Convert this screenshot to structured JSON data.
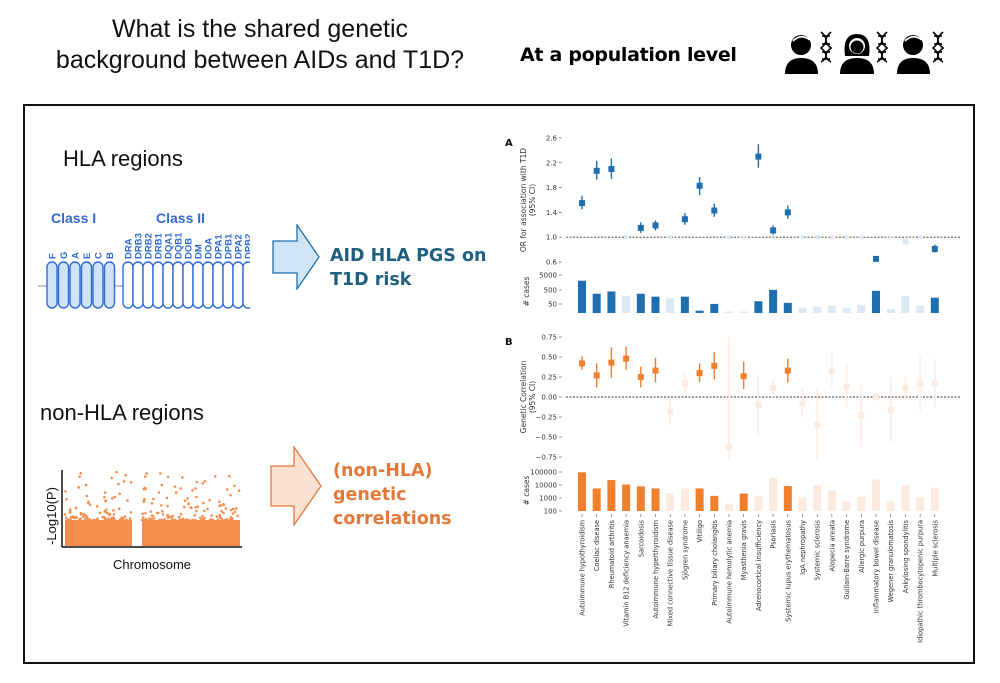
{
  "header": {
    "question_line1": "What is the shared genetic",
    "question_line2": "background between AIDs and T1D?",
    "scope_label": "At a population level",
    "people_icons": [
      "person-dna-icon",
      "person-female-dna-icon",
      "person-dna-icon"
    ]
  },
  "left": {
    "hla": {
      "title": "HLA regions",
      "class1_label": "Class I",
      "class2_label": "Class II",
      "class1_genes": [
        "F",
        "G",
        "A",
        "E",
        "C",
        "B"
      ],
      "class2_genes": [
        "DRA",
        "DRB3",
        "DRB2",
        "DRB1",
        "DQA1",
        "DQB1",
        "DOB",
        "DM",
        "DOA",
        "DPA1",
        "DPB1",
        "DPA2",
        "DPB2"
      ],
      "result_line1": "AID HLA PGS on",
      "result_line2": "T1D risk"
    },
    "non_hla": {
      "title": "non-HLA regions",
      "y_axis_label": "-Log10(P)",
      "x_axis_label": "Chromosome",
      "result_line1": "(non-HLA)",
      "result_line2": "genetic",
      "result_line3": "correlations"
    }
  },
  "colors": {
    "blue": "#1f6fb0",
    "blue_faded": "#dbe8f5",
    "orange": "#f07f2e",
    "orange_faded": "#fdeade",
    "hla_text": "#1f5f80",
    "class_text": "#2f6bd0",
    "nonhla_text": "#e0793a"
  },
  "chart_data": [
    {
      "panel": "A",
      "type": "scatter",
      "ylabel": "OR for association with T1D\n(95% CI)",
      "yticks": [
        0.6,
        1.0,
        1.4,
        1.8,
        2.2,
        2.6
      ],
      "ylim": [
        0.55,
        2.65
      ],
      "reference_line": 1.0,
      "categories": [
        "Autoimmune hypothyroidism",
        "Coeliac disease",
        "Rheumatoid arthritis",
        "Vitamin B12 deficiency anaemia",
        "Sarcoidosis",
        "Autoimmune hyperthyroidism",
        "Mixed connective tissue disease",
        "Sjögren syndrome",
        "Vitiligo",
        "Primary biliary cholangitis",
        "Autoimmune hemolytic anemia",
        "Myasthenia gravis",
        "Adrenocortical insufficiency",
        "Psoriasis",
        "Systemic lupus erythematosus",
        "IgA nephropathy",
        "Systemic sclerosis",
        "Alopecia areata",
        "Guillain-Barre syndrome",
        "Allergic purpura",
        "Inflammatory bowel disease",
        "Wegener granulomatosis",
        "Ankylosing spondylitis",
        "Idiopathic thrombocytopenic purpura",
        "Multiple sclerosis"
      ],
      "or": [
        1.55,
        2.07,
        2.1,
        1.0,
        1.15,
        1.19,
        1.0,
        1.29,
        1.83,
        1.43,
        1.0,
        1.0,
        2.3,
        1.11,
        1.4,
        1.0,
        1.0,
        1.0,
        1.0,
        1.0,
        0.65,
        1.0,
        0.93,
        1.0,
        0.81
      ],
      "ci_low": [
        1.45,
        1.93,
        1.94,
        1.0,
        1.07,
        1.11,
        1.0,
        1.2,
        1.68,
        1.33,
        1.0,
        1.0,
        2.12,
        1.04,
        1.3,
        1.0,
        1.0,
        1.0,
        1.0,
        1.0,
        0.62,
        1.0,
        0.9,
        1.0,
        0.75
      ],
      "ci_high": [
        1.67,
        2.23,
        2.27,
        1.0,
        1.24,
        1.27,
        1.0,
        1.39,
        1.97,
        1.54,
        1.0,
        1.0,
        2.5,
        1.19,
        1.51,
        1.0,
        1.0,
        1.0,
        1.0,
        1.0,
        0.69,
        1.0,
        0.96,
        1.0,
        0.88
      ],
      "significant": [
        true,
        true,
        true,
        false,
        true,
        true,
        false,
        true,
        true,
        true,
        false,
        false,
        true,
        true,
        true,
        false,
        false,
        false,
        false,
        false,
        true,
        false,
        false,
        false,
        true
      ],
      "cases": {
        "ylabel": "# cases",
        "yticks": [
          50,
          500,
          5000
        ],
        "scale": "log",
        "values": [
          3000,
          300,
          450,
          200,
          300,
          180,
          130,
          180,
          15,
          50,
          12,
          12,
          80,
          600,
          60,
          25,
          30,
          35,
          25,
          40,
          500,
          20,
          200,
          35,
          150
        ]
      }
    },
    {
      "panel": "B",
      "type": "scatter",
      "ylabel": "Genetic Correlation\n(95% CI)",
      "yticks": [
        -0.75,
        -0.5,
        -0.25,
        0.0,
        0.25,
        0.5,
        0.75
      ],
      "ylim": [
        -0.8,
        0.8
      ],
      "reference_line": 0.0,
      "rg": [
        0.42,
        0.27,
        0.43,
        0.48,
        0.25,
        0.33,
        -0.18,
        0.17,
        0.3,
        0.39,
        -0.62,
        0.26,
        -0.1,
        0.11,
        0.33,
        -0.08,
        -0.35,
        0.32,
        0.13,
        -0.23,
        0.0,
        -0.16,
        0.11,
        0.17,
        0.17
      ],
      "ci_low": [
        0.34,
        0.12,
        0.24,
        0.34,
        0.12,
        0.18,
        -0.35,
        0.05,
        0.19,
        0.22,
        -0.78,
        0.1,
        -0.48,
        0.0,
        0.18,
        -0.26,
        -0.78,
        0.12,
        -0.14,
        -0.63,
        -0.05,
        -0.56,
        -0.02,
        -0.18,
        -0.14
      ],
      "ci_high": [
        0.51,
        0.42,
        0.62,
        0.63,
        0.38,
        0.49,
        0.0,
        0.3,
        0.42,
        0.56,
        0.75,
        0.44,
        0.27,
        0.22,
        0.48,
        0.1,
        0.1,
        0.55,
        0.4,
        0.16,
        0.05,
        0.26,
        0.25,
        0.52,
        0.48
      ],
      "significant": [
        true,
        true,
        true,
        true,
        true,
        true,
        false,
        false,
        true,
        true,
        false,
        true,
        false,
        false,
        true,
        false,
        false,
        false,
        false,
        false,
        false,
        false,
        false,
        false,
        false
      ],
      "cases": {
        "ylabel": "# cases",
        "yticks": [
          100,
          1000,
          10000,
          100000
        ],
        "scale": "log",
        "values": [
          80000,
          4500,
          20000,
          9000,
          6500,
          4500,
          2000,
          4500,
          4500,
          1200,
          300,
          1800,
          1200,
          30000,
          7000,
          900,
          8000,
          3000,
          450,
          1000,
          22000,
          450,
          8000,
          900,
          5000
        ]
      }
    }
  ]
}
